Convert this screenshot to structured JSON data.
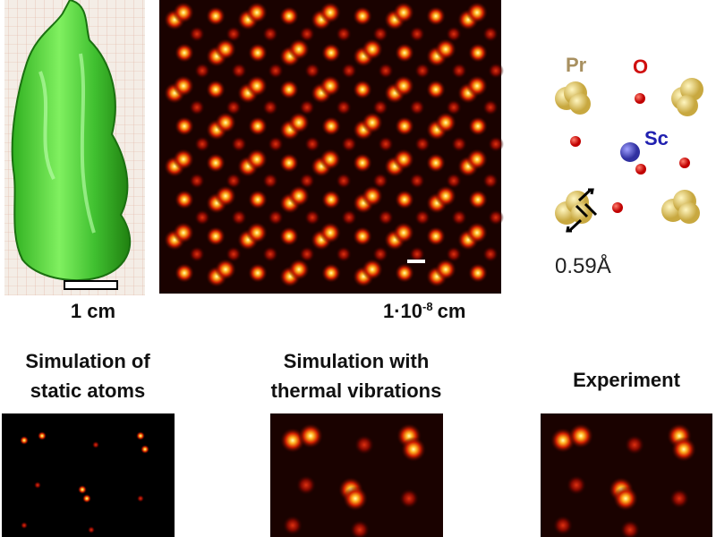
{
  "crystal_panel": {
    "scale_label": "1 cm"
  },
  "image_panel": {
    "scale_label": {
      "base": "1·10",
      "exponent": "-8",
      "unit": "cm"
    }
  },
  "structure_panel": {
    "labels": {
      "pr": "Pr",
      "o": "O",
      "sc": "Sc"
    },
    "distance": "0.59Å"
  },
  "comparison": [
    {
      "title": [
        "Simulation of",
        "static atoms"
      ]
    },
    {
      "title": [
        "Simulation with",
        "thermal vibrations"
      ]
    },
    {
      "title": [
        "Experiment"
      ]
    }
  ]
}
